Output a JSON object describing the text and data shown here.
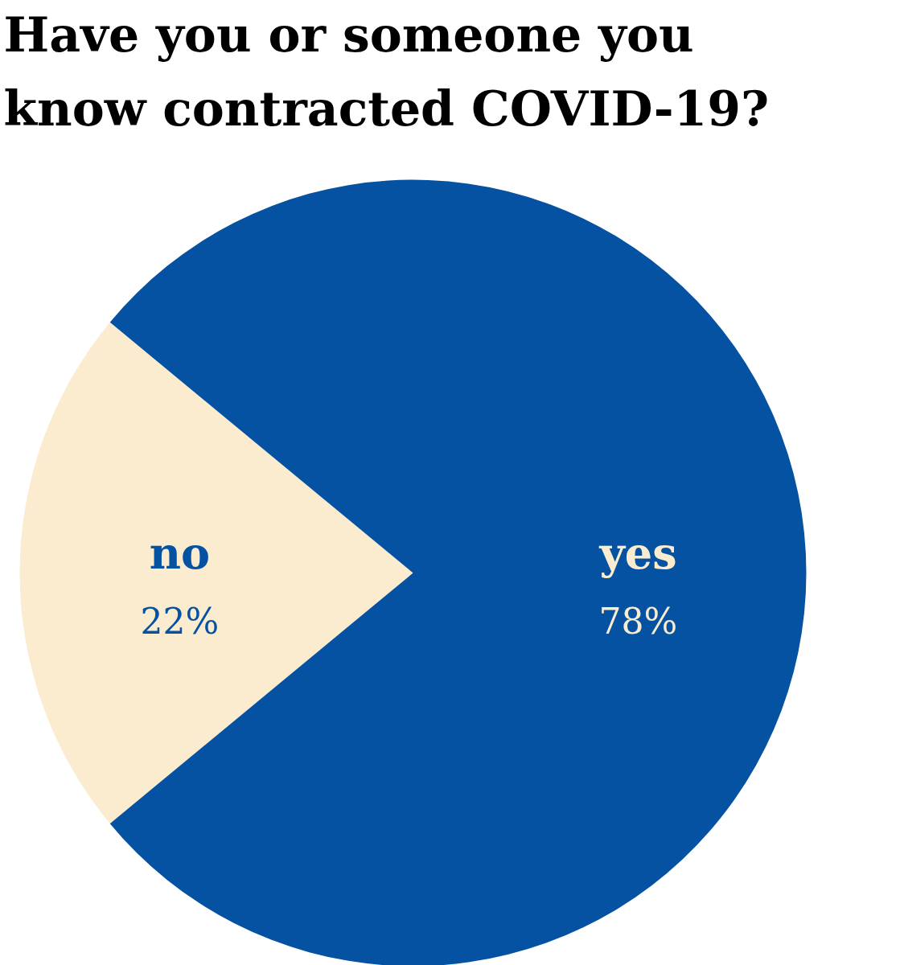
{
  "chart_data": {
    "type": "pie",
    "title": "Have you or someone you\nknow contracted COVID-19?",
    "categories": [
      "no",
      "yes"
    ],
    "values": [
      22,
      78
    ],
    "colors": [
      "#fbecd0",
      "#0652a2"
    ],
    "value_labels": [
      "22%",
      "78%"
    ]
  }
}
